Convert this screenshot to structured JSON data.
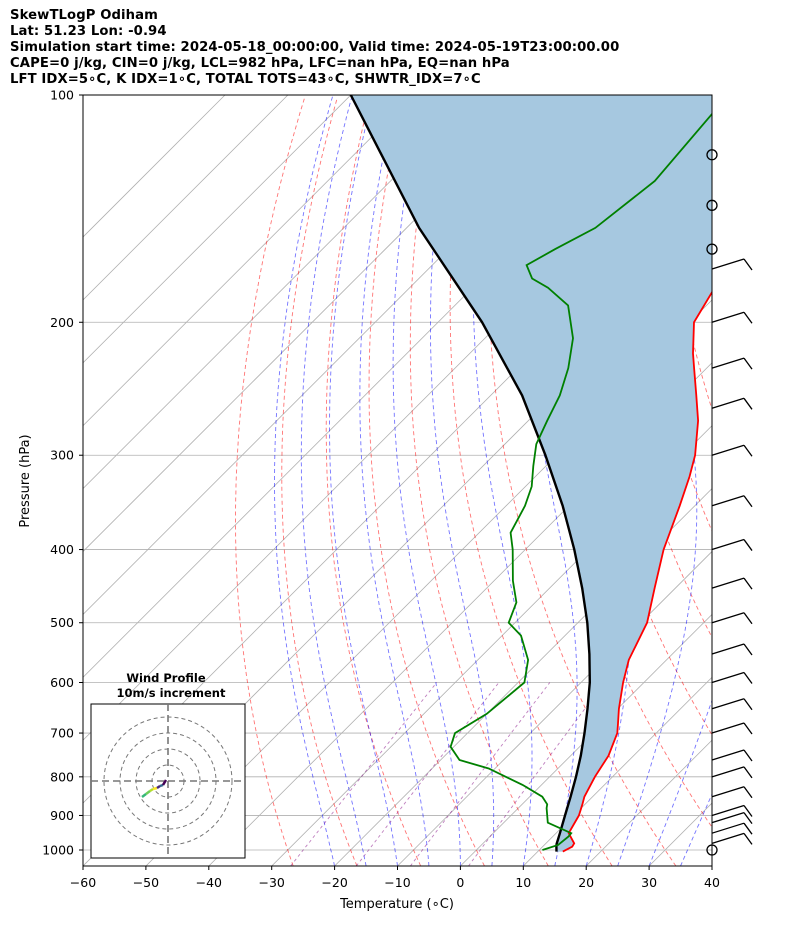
{
  "header": {
    "line1": "SkewTLogP Odiham",
    "line2": "Lat: 51.23   Lon: -0.94",
    "line3": "Simulation start time: 2024-05-18_00:00:00, Valid time: 2024-05-19T23:00:00.00",
    "line4": "CAPE=0 j/kg, CIN=0 j/kg, LCL=982 hPa, LFC=nan hPa, EQ=nan hPa",
    "line5": "LFT IDX=5∘C, K IDX=1∘C, TOTAL TOTS=43∘C, SHWTR_IDX=7∘C"
  },
  "chart_data": {
    "type": "line",
    "xlabel": "Temperature (∘C)",
    "ylabel": "Pressure (hPa)",
    "xlim": [
      -60,
      40
    ],
    "ylim": [
      1050,
      100
    ],
    "yscale": "log",
    "x_ticks": [
      -60,
      -50,
      -40,
      -30,
      -20,
      -10,
      0,
      10,
      20,
      30,
      40
    ],
    "y_ticks": [
      100,
      200,
      300,
      400,
      500,
      600,
      700,
      800,
      900,
      1000
    ],
    "grid": true,
    "series": [
      {
        "role": "temperature",
        "color": "#ff0000",
        "points": [
          [
            1005,
            14.0
          ],
          [
            990,
            14.7
          ],
          [
            980,
            14.5
          ],
          [
            950,
            12.0
          ],
          [
            900,
            10.8
          ],
          [
            870,
            9.6
          ],
          [
            850,
            8.7
          ],
          [
            800,
            7.2
          ],
          [
            750,
            6.0
          ],
          [
            700,
            3.8
          ],
          [
            680,
            2.4
          ],
          [
            650,
            0.2
          ],
          [
            600,
            -3.3
          ],
          [
            560,
            -6.0
          ],
          [
            500,
            -9.0
          ],
          [
            450,
            -13.3
          ],
          [
            400,
            -18.0
          ],
          [
            350,
            -22.4
          ],
          [
            320,
            -25.5
          ],
          [
            300,
            -28.0
          ],
          [
            270,
            -33.0
          ],
          [
            250,
            -37.3
          ],
          [
            230,
            -42.0
          ],
          [
            220,
            -44.5
          ],
          [
            200,
            -49.3
          ],
          [
            180,
            -51.5
          ],
          [
            170,
            -52.2
          ],
          [
            160,
            -52.2
          ],
          [
            150,
            -52.3
          ],
          [
            140,
            -52.8
          ],
          [
            120,
            -53.5
          ],
          [
            100,
            -54.5
          ]
        ]
      },
      {
        "role": "dewpoint",
        "color": "#008000",
        "points": [
          [
            1000,
            10.5
          ],
          [
            985,
            12.2
          ],
          [
            960,
            12.5
          ],
          [
            950,
            12.4
          ],
          [
            920,
            7.0
          ],
          [
            880,
            4.5
          ],
          [
            870,
            4.0
          ],
          [
            850,
            2.0
          ],
          [
            820,
            -3.0
          ],
          [
            780,
            -11.0
          ],
          [
            760,
            -17.0
          ],
          [
            730,
            -20.5
          ],
          [
            700,
            -22.0
          ],
          [
            660,
            -20.0
          ],
          [
            600,
            -19.0
          ],
          [
            560,
            -22.0
          ],
          [
            520,
            -27.0
          ],
          [
            500,
            -31.0
          ],
          [
            470,
            -33.0
          ],
          [
            440,
            -37.0
          ],
          [
            400,
            -42.0
          ],
          [
            380,
            -45.0
          ],
          [
            350,
            -47.0
          ],
          [
            330,
            -49.0
          ],
          [
            310,
            -52.0
          ],
          [
            290,
            -55.0
          ],
          [
            270,
            -57.0
          ],
          [
            250,
            -59.0
          ],
          [
            230,
            -62.0
          ],
          [
            210,
            -66.0
          ],
          [
            190,
            -72.0
          ],
          [
            180,
            -78.0
          ],
          [
            175,
            -82.0
          ],
          [
            168,
            -85.0
          ],
          [
            160,
            -83.0
          ],
          [
            150,
            -80.0
          ],
          [
            130,
            -78.0
          ],
          [
            100,
            -80.0
          ]
        ]
      },
      {
        "role": "parcel",
        "color": "#000000",
        "points": [
          [
            1005,
            13.0
          ],
          [
            990,
            12.2
          ],
          [
            982,
            11.8
          ],
          [
            950,
            10.6
          ],
          [
            900,
            8.6
          ],
          [
            850,
            6.5
          ],
          [
            800,
            4.2
          ],
          [
            750,
            1.6
          ],
          [
            700,
            -1.4
          ],
          [
            650,
            -4.8
          ],
          [
            600,
            -8.6
          ],
          [
            550,
            -13.2
          ],
          [
            500,
            -18.5
          ],
          [
            450,
            -24.8
          ],
          [
            400,
            -32.2
          ],
          [
            350,
            -41.0
          ],
          [
            300,
            -51.8
          ],
          [
            250,
            -65.0
          ],
          [
            200,
            -83.0
          ],
          [
            150,
            -108.0
          ],
          [
            100,
            -140.0
          ]
        ]
      }
    ],
    "wind_barbs": {
      "style": "calm-circle",
      "calm_levels": [
        1000,
        160,
        140,
        120
      ]
    },
    "inset": {
      "title": "Wind Profile",
      "subtitle": "10m/s increment"
    }
  }
}
